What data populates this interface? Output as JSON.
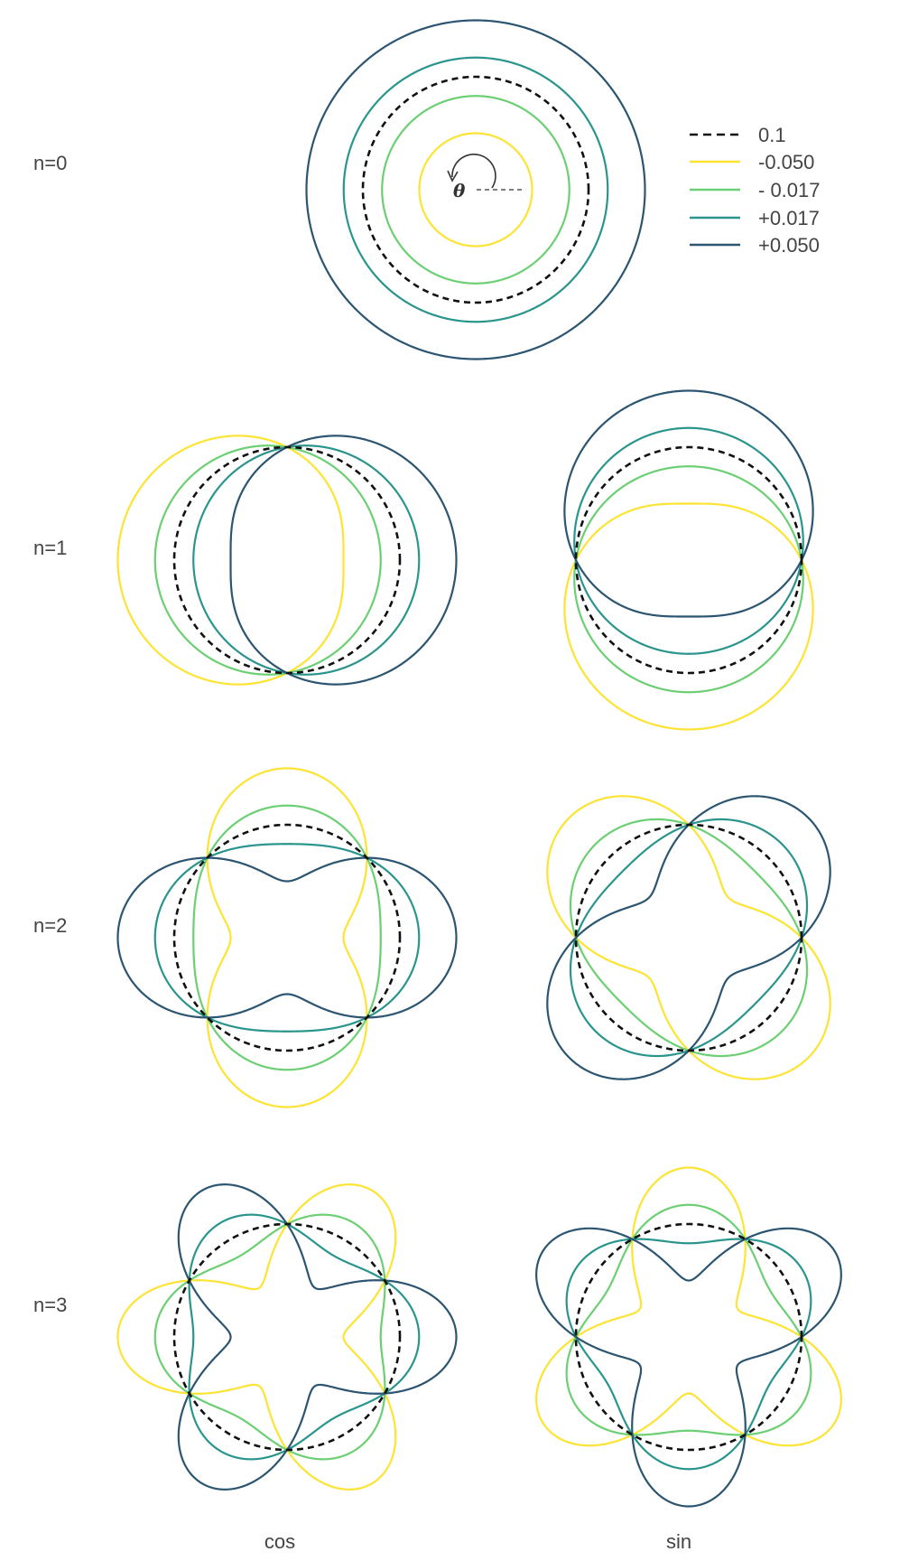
{
  "rows": [
    {
      "label": "n=0",
      "n": 0
    },
    {
      "label": "n=1",
      "n": 1
    },
    {
      "label": "n=2",
      "n": 2
    },
    {
      "label": "n=3",
      "n": 3
    }
  ],
  "columns": [
    {
      "label": "cos",
      "fn": "cos"
    },
    {
      "label": "sin",
      "fn": "sin"
    }
  ],
  "theta_symbol": "θ",
  "base_radius": 0.1,
  "legend": [
    {
      "label": "0.1",
      "amplitude": 0,
      "color": "#111111",
      "dashed": true
    },
    {
      "label": "-0.050",
      "amplitude": -0.05,
      "color": "#fde333",
      "dashed": false
    },
    {
      "label": "- 0.017",
      "amplitude": -0.017,
      "color": "#6ccf73",
      "dashed": false
    },
    {
      "label": "+0.017",
      "amplitude": 0.017,
      "color": "#2a958c",
      "dashed": false
    },
    {
      "label": "+0.050",
      "amplitude": 0.05,
      "color": "#2b5570",
      "dashed": false
    }
  ]
}
